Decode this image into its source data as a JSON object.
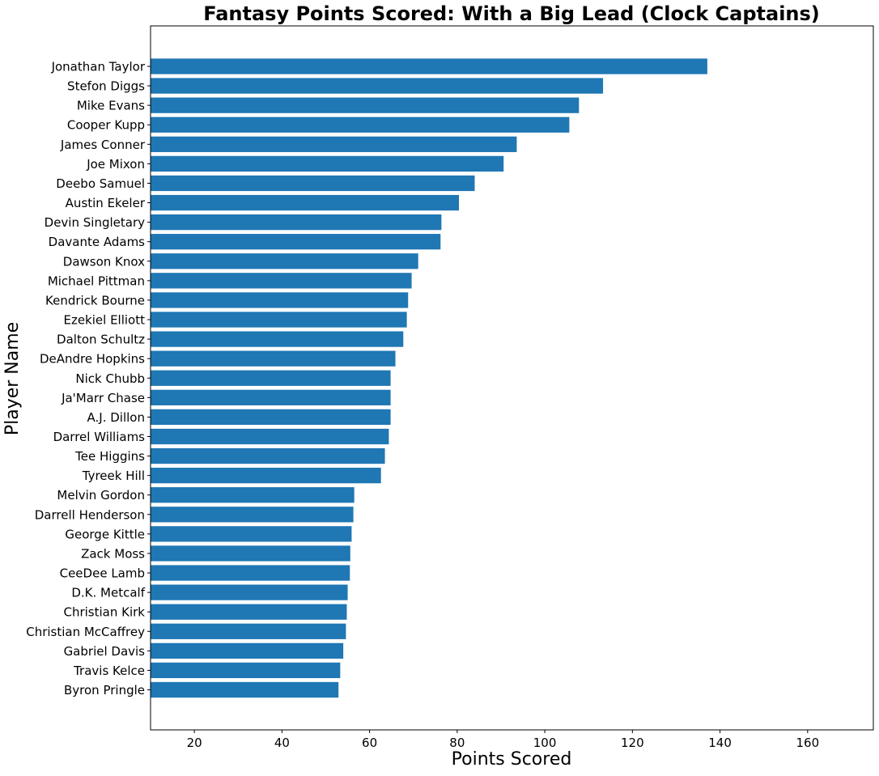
{
  "chart_data": {
    "type": "bar",
    "orientation": "horizontal",
    "title": "Fantasy Points Scored: With a Big Lead (Clock Captains)",
    "xlabel": "Points Scored",
    "ylabel": "Player Name",
    "xlim": [
      10,
      175
    ],
    "xticks": [
      20,
      40,
      60,
      80,
      100,
      120,
      140,
      160
    ],
    "grid": false,
    "bar_color": "#1f77b4",
    "categories": [
      "Jonathan Taylor",
      "Stefon Diggs",
      "Mike Evans",
      "Cooper Kupp",
      "James Conner",
      "Joe Mixon",
      "Deebo Samuel",
      "Austin Ekeler",
      "Devin Singletary",
      "Davante Adams",
      "Dawson Knox",
      "Michael Pittman",
      "Kendrick Bourne",
      "Ezekiel Elliott",
      "Dalton Schultz",
      "DeAndre Hopkins",
      "Nick Chubb",
      "Ja'Marr Chase",
      "A.J. Dillon",
      "Darrel Williams",
      "Tee Higgins",
      "Tyreek Hill",
      "Melvin Gordon",
      "Darrell Henderson",
      "George Kittle",
      "Zack Moss",
      "CeeDee Lamb",
      "D.K. Metcalf",
      "Christian Kirk",
      "Christian McCaffrey",
      "Gabriel Davis",
      "Travis Kelce",
      "Byron Pringle"
    ],
    "values": [
      137.1,
      113.3,
      107.8,
      105.6,
      93.6,
      90.6,
      84.0,
      80.4,
      76.4,
      76.2,
      71.1,
      69.6,
      68.8,
      68.5,
      67.7,
      65.9,
      64.8,
      64.8,
      64.8,
      64.4,
      63.5,
      62.6,
      56.5,
      56.3,
      55.9,
      55.6,
      55.5,
      55.0,
      54.8,
      54.6,
      54.0,
      53.3,
      52.9
    ]
  }
}
